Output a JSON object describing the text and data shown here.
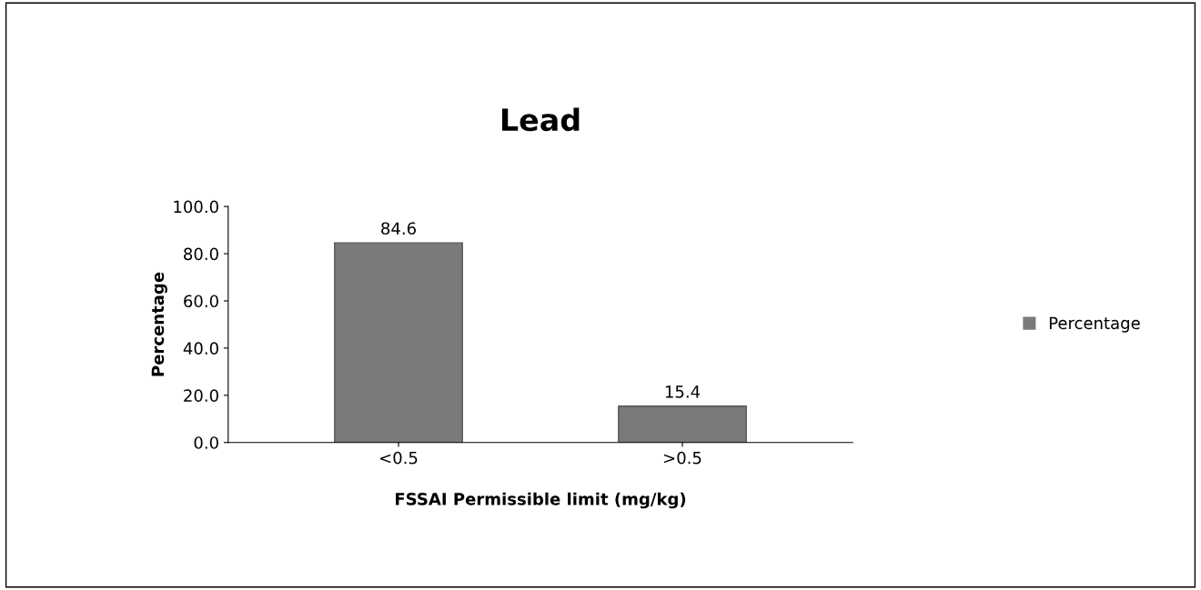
{
  "chart_data": {
    "type": "bar",
    "title": "Lead",
    "xlabel": "FSSAI Permissible limit (mg/kg)",
    "ylabel": "Percentage",
    "categories": [
      "<0.5",
      ">0.5"
    ],
    "series": [
      {
        "name": "Percentage",
        "color": "#7a7a7a",
        "values": [
          84.6,
          15.4
        ]
      }
    ],
    "ylim": [
      0,
      100
    ],
    "yticks": [
      {
        "value": 0,
        "label": "0.0"
      },
      {
        "value": 20,
        "label": "20.0"
      },
      {
        "value": 40,
        "label": "40.0"
      },
      {
        "value": 60,
        "label": "60.0"
      },
      {
        "value": 80,
        "label": "80.0"
      },
      {
        "value": 100,
        "label": "100.0"
      }
    ],
    "data_labels": true,
    "legend": "right",
    "grid": false
  }
}
